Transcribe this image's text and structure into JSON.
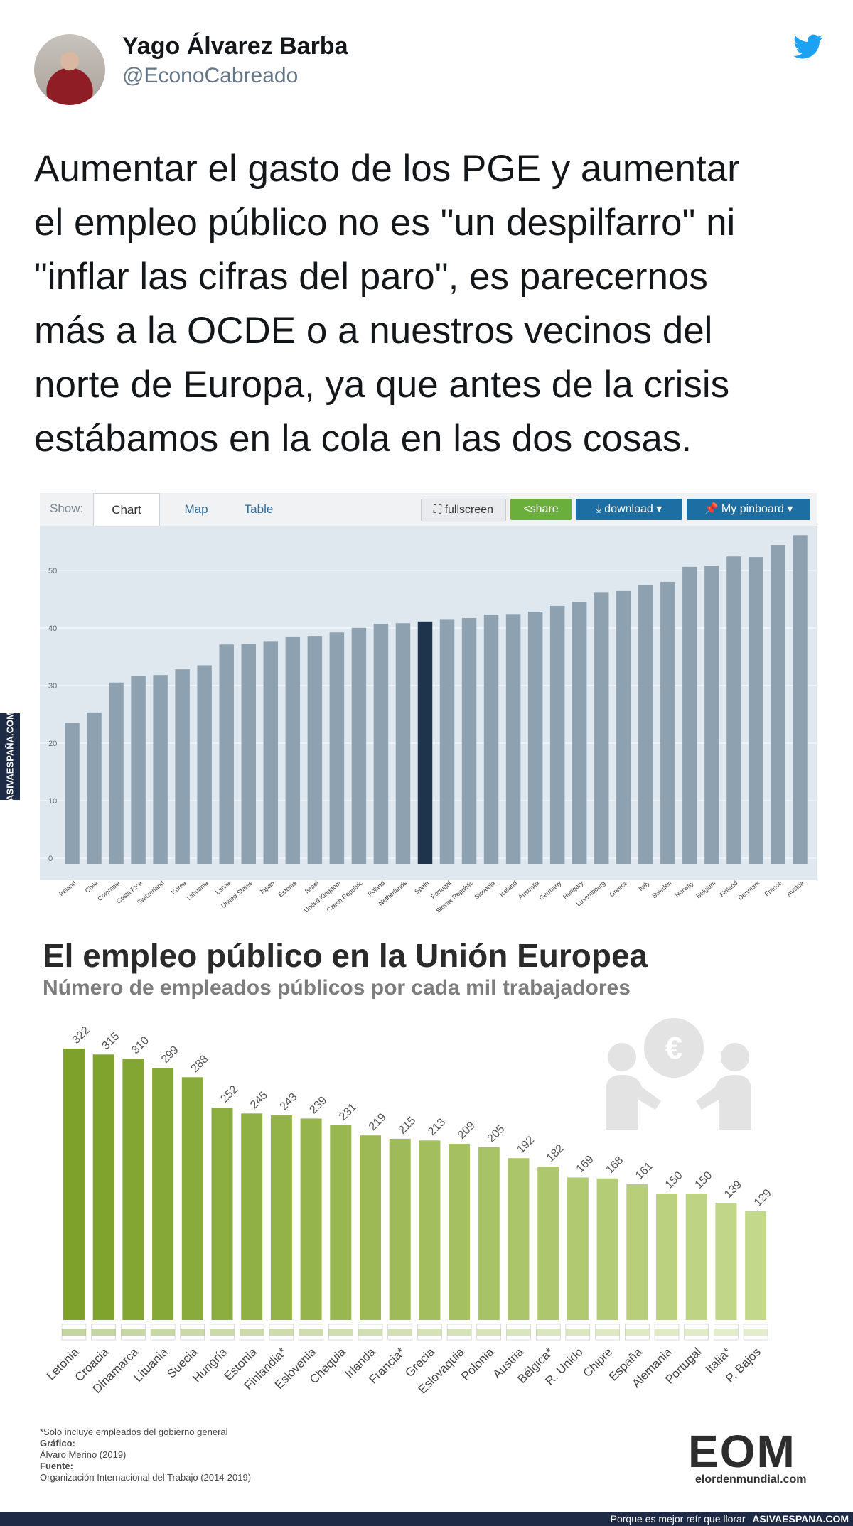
{
  "tweet": {
    "author_name": "Yago Álvarez Barba",
    "author_handle": "@EconoCabreado",
    "text_lines": [
      "Aumentar el gasto de los PGE y aumentar",
      "el empleo público no es \"un despilfarro\" ni",
      "\"inflar las cifras del paro\", es parecernos",
      "más a la OCDE o a nuestros vecinos del",
      "norte de Europa, ya que antes de la crisis",
      "estábamos en la cola en las dos cosas."
    ],
    "icon": "twitter-bird-icon"
  },
  "oecd_toolbar": {
    "show_label": "Show:",
    "tabs": [
      "Chart",
      "Map",
      "Table"
    ],
    "active_tab": "Chart",
    "fullscreen": "fullscreen",
    "share": "share",
    "download": "download ▾",
    "pinboard": "My pinboard ▾"
  },
  "colors": {
    "oecd_bar": "#8ea1b0",
    "oecd_highlight": "#1e344c",
    "eu_dark": "#7da12a",
    "eu_light": "#c4d88c",
    "twitter": "#1da1f2"
  },
  "chart_data": [
    {
      "type": "bar",
      "title": "",
      "xlabel": "",
      "ylabel": "",
      "ylim": [
        0,
        58
      ],
      "yticks": [
        0,
        10,
        20,
        30,
        40,
        50
      ],
      "highlight": "Spain",
      "categories": [
        "Ireland",
        "Chile",
        "Colombia",
        "Costa Rica",
        "Switzerland",
        "Korea",
        "Lithuania",
        "Latvia",
        "United States",
        "Japan",
        "Estonia",
        "Israel",
        "United Kingdom",
        "Czech Republic",
        "Poland",
        "Netherlands",
        "Spain",
        "Portugal",
        "Slovak Republic",
        "Slovenia",
        "Iceland",
        "Australia",
        "Germany",
        "Hungary",
        "Luxembourg",
        "Greece",
        "Italy",
        "Sweden",
        "Norway",
        "Belgium",
        "Finland",
        "Denmark",
        "France",
        "Austria"
      ],
      "values": [
        24.5,
        26.3,
        31.5,
        32.6,
        32.8,
        33.8,
        34.5,
        38.1,
        38.2,
        38.7,
        39.5,
        39.6,
        40.2,
        41.0,
        41.7,
        41.8,
        42.1,
        42.4,
        42.7,
        43.3,
        43.4,
        43.8,
        44.8,
        45.5,
        47.1,
        47.4,
        48.4,
        49.0,
        51.6,
        51.8,
        53.4,
        53.3,
        55.4,
        57.1
      ]
    },
    {
      "type": "bar",
      "title": "El empleo público en la Unión Europea",
      "subtitle": "Número de empleados públicos por cada mil trabajadores",
      "xlabel": "",
      "ylabel": "",
      "ylim": [
        0,
        340
      ],
      "categories": [
        "Letonia",
        "Croacia",
        "Dinamarca",
        "Lituania",
        "Suecia",
        "Hungría",
        "Estonia",
        "Finlandia*",
        "Eslovenia",
        "Chequia",
        "Irlanda",
        "Francia*",
        "Grecia",
        "Eslovaquia",
        "Polonia",
        "Austria",
        "Bélgica*",
        "R. Unido",
        "Chipre",
        "España",
        "Alemania",
        "Portugal",
        "Italia*",
        "P. Bajos"
      ],
      "values": [
        322,
        315,
        310,
        299,
        288,
        252,
        245,
        243,
        239,
        231,
        219,
        215,
        213,
        209,
        205,
        192,
        182,
        169,
        168,
        161,
        150,
        150,
        139,
        129
      ],
      "flags": [
        "flag-latvia-icon",
        "flag-croatia-icon",
        "flag-denmark-icon",
        "flag-lithuania-icon",
        "flag-sweden-icon",
        "flag-hungary-icon",
        "flag-estonia-icon",
        "flag-finland-icon",
        "flag-slovenia-icon",
        "flag-czechia-icon",
        "flag-ireland-icon",
        "flag-france-icon",
        "flag-greece-icon",
        "flag-slovakia-icon",
        "flag-poland-icon",
        "flag-austria-icon",
        "flag-belgium-icon",
        "flag-uk-icon",
        "flag-cyprus-icon",
        "flag-spain-icon",
        "flag-germany-icon",
        "flag-portugal-icon",
        "flag-italy-icon",
        "flag-netherlands-icon"
      ]
    }
  ],
  "eu_footnotes": {
    "note": "*Solo incluye empleados del gobierno general",
    "chart_label": "Gráfico:",
    "chart_author": "Álvaro Merino (2019)",
    "source_label": "Fuente:",
    "source": "Organización Internacional del Trabajo (2014-2019)"
  },
  "eom_logo": {
    "letters": "EOM",
    "url": "elordenmundial.com"
  },
  "watermark": {
    "side": "ASIVAESPAÑA.COM",
    "footer_text": "Porque es mejor reír que llorar",
    "footer_site": "ASIVAESPANA.COM"
  }
}
